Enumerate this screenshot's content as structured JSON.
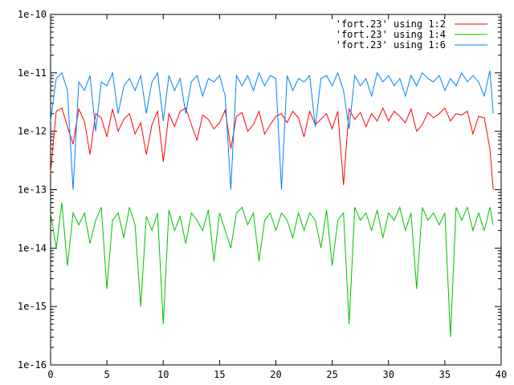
{
  "chart_data": {
    "type": "line",
    "title": "",
    "xlabel": "",
    "ylabel": "",
    "xlim": [
      0,
      40
    ],
    "ylim": [
      1e-16,
      1e-10
    ],
    "yscale": "log",
    "grid": false,
    "legend_position": "top-right",
    "x_ticks": [
      "0",
      "5",
      "10",
      "15",
      "20",
      "25",
      "30",
      "35",
      "40"
    ],
    "y_ticks": [
      "1e-16",
      "1e-15",
      "1e-14",
      "1e-13",
      "1e-12",
      "1e-11",
      "1e-10"
    ],
    "series": [
      {
        "name": "'fort.23' using 1:2",
        "color": "#ff0000",
        "x": [
          0,
          0.5,
          1,
          1.5,
          2,
          2.5,
          3,
          3.5,
          4,
          4.5,
          5,
          5.5,
          6,
          6.5,
          7,
          7.5,
          8,
          8.5,
          9,
          9.5,
          10,
          10.5,
          11,
          11.5,
          12,
          12.5,
          13,
          13.5,
          14,
          14.5,
          15,
          15.5,
          16,
          16.5,
          17,
          17.5,
          18,
          18.5,
          19,
          19.5,
          20,
          20.5,
          21,
          21.5,
          22,
          22.5,
          23,
          23.5,
          24,
          24.5,
          25,
          25.5,
          26,
          26.5,
          27,
          27.5,
          28,
          28.5,
          29,
          29.5,
          30,
          30.5,
          31,
          31.5,
          32,
          32.5,
          33,
          33.5,
          34,
          34.5,
          35,
          35.5,
          36,
          36.5,
          37,
          37.5,
          38,
          38.5,
          39,
          39.3
        ],
        "values": [
          2e-13,
          2.2e-12,
          2.5e-12,
          1.2e-12,
          6e-13,
          2.4e-12,
          1.5e-12,
          4e-13,
          2e-12,
          1.7e-12,
          8e-13,
          2.4e-12,
          1e-12,
          1.6e-12,
          2e-12,
          9e-13,
          1.4e-12,
          4e-13,
          1.3e-12,
          2.2e-12,
          3e-13,
          2e-12,
          1.2e-12,
          2.2e-12,
          2.5e-12,
          1.3e-12,
          7e-13,
          1.9e-12,
          1.6e-12,
          1.1e-12,
          1.4e-12,
          2.3e-12,
          5e-13,
          1.8e-12,
          2.1e-12,
          1e-12,
          1.3e-12,
          2.2e-12,
          9e-13,
          1.3e-12,
          1.8e-12,
          2e-12,
          1.4e-12,
          2.2e-12,
          1.7e-12,
          8e-13,
          2.2e-12,
          1.3e-12,
          1.6e-12,
          2e-12,
          1.1e-12,
          2.2e-12,
          1.2e-13,
          2.4e-12,
          1.6e-12,
          2.1e-12,
          1.2e-12,
          2e-12,
          1.5e-12,
          2.5e-12,
          1.5e-12,
          2.2e-12,
          1.8e-12,
          1.4e-12,
          2.4e-12,
          1e-12,
          1.3e-12,
          2.1e-12,
          1.7e-12,
          2e-12,
          2.5e-12,
          1.5e-12,
          2e-12,
          1.9e-12,
          2.2e-12,
          9e-13,
          1.8e-12,
          1.7e-12,
          5e-13,
          1e-13
        ]
      },
      {
        "name": "'fort.23' using 1:4",
        "color": "#00c000",
        "x": [
          0,
          0.5,
          1,
          1.5,
          2,
          2.5,
          3,
          3.5,
          4,
          4.5,
          5,
          5.5,
          6,
          6.5,
          7,
          7.5,
          8,
          8.5,
          9,
          9.5,
          10,
          10.5,
          11,
          11.5,
          12,
          12.5,
          13,
          13.5,
          14,
          14.5,
          15,
          15.5,
          16,
          16.5,
          17,
          17.5,
          18,
          18.5,
          19,
          19.5,
          20,
          20.5,
          21,
          21.5,
          22,
          22.5,
          23,
          23.5,
          24,
          24.5,
          25,
          25.5,
          26,
          26.5,
          27,
          27.5,
          28,
          28.5,
          29,
          29.5,
          30,
          30.5,
          31,
          31.5,
          32,
          32.5,
          33,
          33.5,
          34,
          34.5,
          35,
          35.5,
          36,
          36.5,
          37,
          37.5,
          38,
          38.5,
          39,
          39.3
        ],
        "values": [
          4e-14,
          1e-14,
          6e-14,
          5e-15,
          4e-14,
          2.5e-14,
          4e-14,
          1.2e-14,
          3e-14,
          5e-14,
          2e-15,
          3e-14,
          4e-14,
          1.5e-14,
          5e-14,
          2.5e-14,
          1e-15,
          3.5e-14,
          2e-14,
          4e-14,
          5e-16,
          4.5e-14,
          2e-14,
          3.5e-14,
          1.2e-14,
          4e-14,
          3e-14,
          2e-14,
          4.5e-14,
          6e-15,
          4e-14,
          2e-14,
          1e-14,
          4e-14,
          5e-14,
          2.5e-14,
          4e-14,
          6e-15,
          3e-14,
          4e-14,
          2e-14,
          4e-14,
          3e-14,
          1.5e-14,
          4e-14,
          2e-14,
          4e-14,
          3e-14,
          1e-14,
          4.5e-14,
          5e-15,
          3e-14,
          4e-14,
          5e-16,
          5e-14,
          3e-14,
          4e-14,
          2e-14,
          4.5e-14,
          1.5e-14,
          4e-14,
          3e-14,
          5e-14,
          2e-14,
          4e-14,
          2e-15,
          5e-14,
          3e-14,
          4e-14,
          2.5e-14,
          4e-14,
          3e-16,
          5e-14,
          3e-14,
          5e-14,
          2e-14,
          4e-14,
          2e-14,
          5e-14,
          2.5e-14
        ]
      },
      {
        "name": "'fort.23' using 1:6",
        "color": "#0080ff",
        "x": [
          0,
          0.5,
          1,
          1.5,
          2,
          2.5,
          3,
          3.5,
          4,
          4.5,
          5,
          5.5,
          6,
          6.5,
          7,
          7.5,
          8,
          8.5,
          9,
          9.5,
          10,
          10.5,
          11,
          11.5,
          12,
          12.5,
          13,
          13.5,
          14,
          14.5,
          15,
          15.5,
          16,
          16.5,
          17,
          17.5,
          18,
          18.5,
          19,
          19.5,
          20,
          20.5,
          21,
          21.5,
          22,
          22.5,
          23,
          23.5,
          24,
          24.5,
          25,
          25.5,
          26,
          26.5,
          27,
          27.5,
          28,
          28.5,
          29,
          29.5,
          30,
          30.5,
          31,
          31.5,
          32,
          32.5,
          33,
          33.5,
          34,
          34.5,
          35,
          35.5,
          36,
          36.5,
          37,
          37.5,
          38,
          38.5,
          39,
          39.3
        ],
        "values": [
          1.5e-12,
          8e-12,
          1e-11,
          5e-12,
          1e-13,
          7e-12,
          5e-12,
          9e-12,
          1e-12,
          7e-12,
          6e-12,
          1e-11,
          2e-12,
          6e-12,
          8e-12,
          5e-12,
          9e-12,
          2e-12,
          7e-12,
          1e-11,
          1.5e-12,
          9e-12,
          5e-12,
          8e-12,
          2e-12,
          7e-12,
          9e-12,
          4e-12,
          8e-12,
          7e-12,
          9e-12,
          4e-12,
          1e-13,
          9e-12,
          6e-12,
          9e-12,
          5e-12,
          1e-11,
          6e-12,
          9e-12,
          8e-12,
          1e-13,
          9e-12,
          5e-12,
          8e-12,
          7e-12,
          9e-12,
          1.2e-12,
          8e-12,
          9e-12,
          6e-12,
          1e-11,
          5e-12,
          1.1e-12,
          9e-12,
          6e-12,
          8e-12,
          4e-12,
          1e-11,
          7e-12,
          9e-12,
          6e-12,
          8e-12,
          4e-12,
          9e-12,
          6e-12,
          1e-11,
          8e-12,
          7e-12,
          9e-12,
          5e-12,
          8e-12,
          6e-12,
          1e-11,
          7e-12,
          9e-12,
          7e-12,
          4e-12,
          1.1e-11,
          2e-12
        ]
      }
    ]
  }
}
